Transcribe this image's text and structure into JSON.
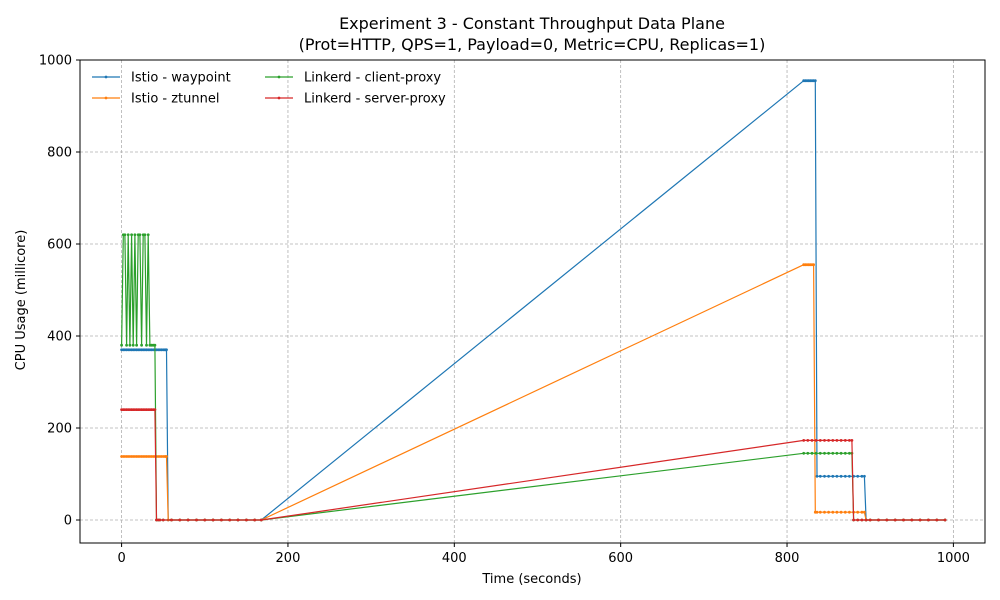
{
  "chart_data": {
    "type": "line",
    "title": "Experiment 3 - Constant Throughput Data Plane",
    "subtitle": "(Prot=HTTP, QPS=1, Payload=0, Metric=CPU, Replicas=1)",
    "xlabel": "Time (seconds)",
    "ylabel": "CPU Usage (millicore)",
    "xlim": [
      -50,
      1038
    ],
    "ylim": [
      -50,
      1000
    ],
    "xticks": [
      0,
      200,
      400,
      600,
      800,
      1000
    ],
    "yticks": [
      0,
      200,
      400,
      600,
      800,
      1000
    ],
    "grid": true,
    "legend": {
      "placement": "top-left",
      "columns": 2
    },
    "series": [
      {
        "name": "Istio - waypoint",
        "color": "#1f77b4",
        "x": [
          0,
          2,
          4,
          6,
          8,
          10,
          12,
          14,
          16,
          18,
          20,
          22,
          24,
          26,
          28,
          30,
          32,
          34,
          36,
          38,
          40,
          42,
          44,
          46,
          48,
          50,
          52,
          53,
          54,
          56,
          60,
          70,
          80,
          90,
          100,
          110,
          120,
          130,
          140,
          150,
          160,
          168,
          820,
          822,
          824,
          826,
          828,
          830,
          832,
          834,
          836,
          840,
          845,
          850,
          855,
          860,
          865,
          870,
          875,
          880,
          885,
          890,
          893,
          895,
          900,
          910,
          920,
          930,
          940,
          950,
          960,
          970,
          980,
          990
        ],
        "y": [
          370,
          370,
          370,
          370,
          370,
          370,
          370,
          370,
          370,
          370,
          370,
          370,
          370,
          370,
          370,
          370,
          370,
          370,
          370,
          370,
          370,
          370,
          370,
          370,
          370,
          370,
          370,
          370,
          370,
          0,
          0,
          0,
          0,
          0,
          0,
          0,
          0,
          0,
          0,
          0,
          0,
          0,
          955,
          955,
          955,
          955,
          955,
          955,
          955,
          955,
          95,
          95,
          95,
          95,
          95,
          95,
          95,
          95,
          95,
          95,
          95,
          95,
          95,
          0,
          0,
          0,
          0,
          0,
          0,
          0,
          0,
          0,
          0,
          0
        ]
      },
      {
        "name": "Istio - ztunnel",
        "color": "#ff7f0e",
        "x": [
          0,
          2,
          4,
          6,
          8,
          10,
          12,
          14,
          16,
          18,
          20,
          22,
          24,
          26,
          28,
          30,
          32,
          34,
          36,
          38,
          40,
          42,
          44,
          46,
          48,
          50,
          52,
          53,
          54,
          56,
          60,
          70,
          80,
          90,
          100,
          110,
          120,
          130,
          140,
          150,
          160,
          168,
          820,
          822,
          824,
          826,
          828,
          830,
          832,
          834,
          836,
          840,
          845,
          850,
          855,
          860,
          865,
          870,
          875,
          880,
          885,
          890,
          893,
          895,
          900,
          910,
          920,
          930,
          940,
          950,
          960,
          970,
          980,
          990
        ],
        "y": [
          138,
          138,
          138,
          138,
          138,
          138,
          138,
          138,
          138,
          138,
          138,
          138,
          138,
          138,
          138,
          138,
          138,
          138,
          138,
          138,
          138,
          138,
          138,
          138,
          138,
          138,
          138,
          138,
          138,
          0,
          0,
          0,
          0,
          0,
          0,
          0,
          0,
          0,
          0,
          0,
          0,
          0,
          555,
          555,
          555,
          555,
          555,
          555,
          555,
          17,
          17,
          17,
          17,
          17,
          17,
          17,
          17,
          17,
          17,
          17,
          17,
          17,
          17,
          0,
          0,
          0,
          0,
          0,
          0,
          0,
          0,
          0,
          0,
          0
        ]
      },
      {
        "name": "Linkerd - client-proxy",
        "color": "#2ca02c",
        "x": [
          0,
          2,
          4,
          6,
          8,
          10,
          12,
          14,
          16,
          18,
          20,
          22,
          24,
          26,
          28,
          30,
          32,
          34,
          36,
          38,
          40,
          42,
          44,
          46,
          50,
          60,
          70,
          80,
          90,
          100,
          110,
          120,
          130,
          140,
          150,
          160,
          168,
          820,
          825,
          830,
          835,
          840,
          845,
          850,
          855,
          860,
          865,
          870,
          875,
          878,
          880,
          885,
          890,
          895,
          900,
          910,
          920,
          930,
          940,
          950,
          960,
          970,
          980,
          990
        ],
        "y": [
          380,
          620,
          620,
          380,
          620,
          380,
          620,
          380,
          620,
          380,
          620,
          620,
          380,
          620,
          620,
          380,
          620,
          380,
          380,
          380,
          380,
          0,
          0,
          0,
          0,
          0,
          0,
          0,
          0,
          0,
          0,
          0,
          0,
          0,
          0,
          0,
          0,
          145,
          145,
          145,
          145,
          145,
          145,
          145,
          145,
          145,
          145,
          145,
          145,
          145,
          0,
          0,
          0,
          0,
          0,
          0,
          0,
          0,
          0,
          0,
          0,
          0,
          0,
          0
        ]
      },
      {
        "name": "Linkerd - server-proxy",
        "color": "#d62728",
        "x": [
          0,
          2,
          4,
          6,
          8,
          10,
          12,
          14,
          16,
          18,
          20,
          22,
          24,
          26,
          28,
          30,
          32,
          34,
          36,
          38,
          40,
          42,
          44,
          46,
          50,
          60,
          70,
          80,
          90,
          100,
          110,
          120,
          130,
          140,
          150,
          160,
          168,
          820,
          825,
          830,
          835,
          840,
          845,
          850,
          855,
          860,
          865,
          870,
          875,
          878,
          880,
          885,
          890,
          895,
          900,
          910,
          920,
          930,
          940,
          950,
          960,
          970,
          980,
          990
        ],
        "y": [
          240,
          240,
          240,
          240,
          240,
          240,
          240,
          240,
          240,
          240,
          240,
          240,
          240,
          240,
          240,
          240,
          240,
          240,
          240,
          240,
          240,
          0,
          0,
          0,
          0,
          0,
          0,
          0,
          0,
          0,
          0,
          0,
          0,
          0,
          0,
          0,
          0,
          173,
          173,
          173,
          173,
          173,
          173,
          173,
          173,
          173,
          173,
          173,
          173,
          173,
          0,
          0,
          0,
          0,
          0,
          0,
          0,
          0,
          0,
          0,
          0,
          0,
          0,
          0
        ]
      }
    ]
  }
}
